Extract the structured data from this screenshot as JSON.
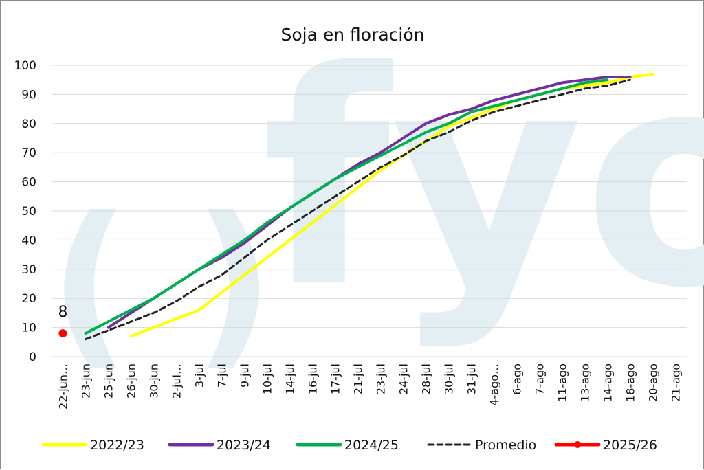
{
  "chart_data": {
    "type": "line",
    "title": "Soja en floración",
    "xlabel": "",
    "ylabel": "",
    "ylim": [
      0,
      100
    ],
    "yticks": [
      0,
      10,
      20,
      30,
      40,
      50,
      60,
      70,
      80,
      90,
      100
    ],
    "grid": true,
    "legend_position": "bottom",
    "categories": [
      "22-jun…",
      "23-jun",
      "25-jun",
      "26-jun",
      "30-jun",
      "2-jul…",
      "3-jul",
      "7-jul",
      "9-jul",
      "10-jul",
      "14-jul",
      "16-jul",
      "17-jul",
      "21-jul",
      "23-jul",
      "24-jul",
      "28-jul",
      "30-jul",
      "31-jul",
      "4-ago…",
      "6-ago",
      "7-ago",
      "11-ago",
      "13-ago",
      "14-ago",
      "18-ago",
      "20-ago",
      "21-ago"
    ],
    "series": [
      {
        "name": "2022/23",
        "color": "#ffff00",
        "style": "solid",
        "values": [
          null,
          null,
          null,
          7,
          10,
          13,
          16,
          22,
          28,
          34,
          40,
          46,
          52,
          58,
          64,
          69,
          74,
          79,
          82,
          85,
          88,
          90,
          92,
          93,
          94,
          96,
          97,
          null
        ]
      },
      {
        "name": "2023/24",
        "color": "#7030a0",
        "style": "solid",
        "values": [
          null,
          null,
          10,
          15,
          20,
          25,
          30,
          34,
          39,
          45,
          51,
          56,
          61,
          66,
          70,
          75,
          80,
          83,
          85,
          88,
          90,
          92,
          94,
          95,
          96,
          96,
          null,
          null
        ]
      },
      {
        "name": "2024/25",
        "color": "#00b050",
        "style": "solid",
        "values": [
          null,
          8,
          12,
          16,
          20,
          25,
          30,
          35,
          40,
          46,
          51,
          56,
          61,
          65,
          69,
          73,
          77,
          80,
          84,
          86,
          88,
          90,
          92,
          94,
          95,
          null,
          null,
          null
        ]
      },
      {
        "name": "Promedio",
        "color": "#222222",
        "style": "dashed",
        "values": [
          null,
          6,
          9,
          12,
          15,
          19,
          24,
          28,
          34,
          40,
          45,
          50,
          55,
          60,
          65,
          69,
          74,
          77,
          81,
          84,
          86,
          88,
          90,
          92,
          93,
          95,
          null,
          null
        ]
      },
      {
        "name": "2025/26",
        "color": "#ff0000",
        "style": "marker",
        "values": [
          8,
          null,
          null,
          null,
          null,
          null,
          null,
          null,
          null,
          null,
          null,
          null,
          null,
          null,
          null,
          null,
          null,
          null,
          null,
          null,
          null,
          null,
          null,
          null,
          null,
          null,
          null,
          null
        ]
      }
    ],
    "annotations": [
      {
        "text": "8",
        "series": "2025/26",
        "category": "22-jun…"
      }
    ]
  },
  "watermark": {
    "text_paren": "( )",
    "text_fyo": "fyo",
    "color": "#e3eff2"
  }
}
